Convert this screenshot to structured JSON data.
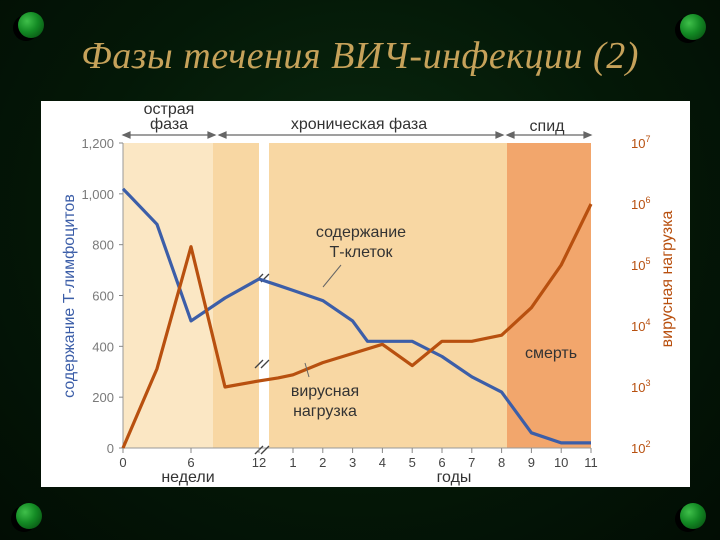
{
  "slide": {
    "title": "Фазы течения ВИЧ-инфекции (2)"
  },
  "colors": {
    "tcell": "#3c5ea8",
    "viral": "#b8500f",
    "acute_bg": "#fbe7c4",
    "chronic_bg": "#f8d7a3",
    "aids_bg": "#f2a66c",
    "label_gray": "#7a7a7a",
    "slide_bg": "#041807",
    "title": "#c6a25a"
  },
  "chart_data": {
    "type": "line",
    "phases": [
      {
        "label": "острая фаза"
      },
      {
        "label": "хроническая фаза"
      },
      {
        "label": "спид"
      }
    ],
    "x_groups": [
      {
        "label": "недели",
        "ticks": [
          "0",
          "6",
          "12"
        ]
      },
      {
        "label": "годы",
        "ticks": [
          "1",
          "2",
          "3",
          "4",
          "5",
          "6",
          "7",
          "8",
          "9",
          "10",
          "11"
        ]
      }
    ],
    "y_left": {
      "label": "содержание Т-лимфоцитов",
      "ticks": [
        "0",
        "200",
        "400",
        "600",
        "800",
        "1,000",
        "1,200"
      ],
      "range": [
        0,
        1200
      ]
    },
    "y_right": {
      "label": "вирусная нагрузка",
      "ticks": [
        {
          "base": "10",
          "exp": "2"
        },
        {
          "base": "10",
          "exp": "3"
        },
        {
          "base": "10",
          "exp": "4"
        },
        {
          "base": "10",
          "exp": "5"
        },
        {
          "base": "10",
          "exp": "6"
        },
        {
          "base": "10",
          "exp": "7"
        }
      ],
      "scale": "log",
      "range_exp": [
        2,
        7
      ]
    },
    "series": [
      {
        "name_lines": [
          "содержание",
          "Т-клеток"
        ],
        "axis": "left",
        "x": [
          "0 нед",
          "3 нед",
          "6 нед",
          "9 нед",
          "12 нед",
          "0.5 лет",
          "1 год",
          "2 года",
          "3 года",
          "3.5 года",
          "4 года",
          "5 лет",
          "6 лет",
          "7 лет",
          "8 лет",
          "9 лет",
          "10 лет",
          "11 лет"
        ],
        "values": [
          1020,
          880,
          500,
          590,
          665,
          640,
          620,
          580,
          500,
          420,
          420,
          420,
          360,
          280,
          220,
          60,
          20,
          20
        ]
      },
      {
        "name_lines": [
          "вирусная",
          "нагрузка"
        ],
        "axis": "right_log",
        "x": [
          "0 нед",
          "3 нед",
          "6 нед",
          "9 нед",
          "12 нед",
          "0.5 лет",
          "1 год",
          "2 года",
          "3 года",
          "4 года",
          "5 лет",
          "6 лет",
          "7 лет",
          "8 лет",
          "9 лет",
          "10 лет",
          "11 лет"
        ],
        "exp_values": [
          2.0,
          3.3,
          5.3,
          3.0,
          3.1,
          3.15,
          3.2,
          3.4,
          3.55,
          3.7,
          3.35,
          3.75,
          3.75,
          3.85,
          4.3,
          5.0,
          6.0
        ]
      }
    ],
    "annotations": [
      {
        "text": "смерть"
      }
    ]
  }
}
